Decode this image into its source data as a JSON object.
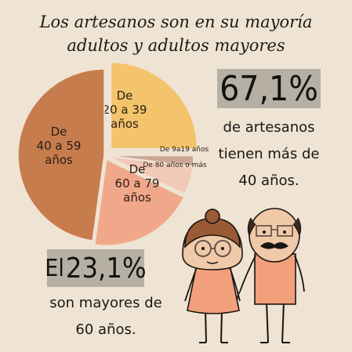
{
  "title": {
    "line1": "Los artesanos son en su mayoría",
    "line2": "adultos y adultos mayores"
  },
  "stat1": {
    "value": "67,1%",
    "text_lines": [
      "de artesanos",
      "tienen más de",
      "40 años."
    ]
  },
  "stat2": {
    "prefix": "El",
    "value": "23,1%",
    "text_lines": [
      "son mayores de",
      "60 años."
    ]
  },
  "chart_data": {
    "type": "pie",
    "slices": [
      {
        "label_lines": [
          "De",
          "20 a 39",
          "años"
        ],
        "value": 23.0,
        "color": "#f3c46c"
      },
      {
        "label_lines": [
          "De 9a19 años"
        ],
        "value": 1.8,
        "color": "#c9a995"
      },
      {
        "label_lines": [
          "De 80 años o más"
        ],
        "value": 4.8,
        "color": "#f0c9b7"
      },
      {
        "label_lines": [
          "De",
          "60 a 79",
          "años"
        ],
        "value": 18.3,
        "color": "#f1a88a"
      },
      {
        "label_lines": [
          "De",
          "40 a 59",
          "años"
        ],
        "value": 43.9,
        "color": "#c77c4e"
      }
    ],
    "legend": "none"
  }
}
